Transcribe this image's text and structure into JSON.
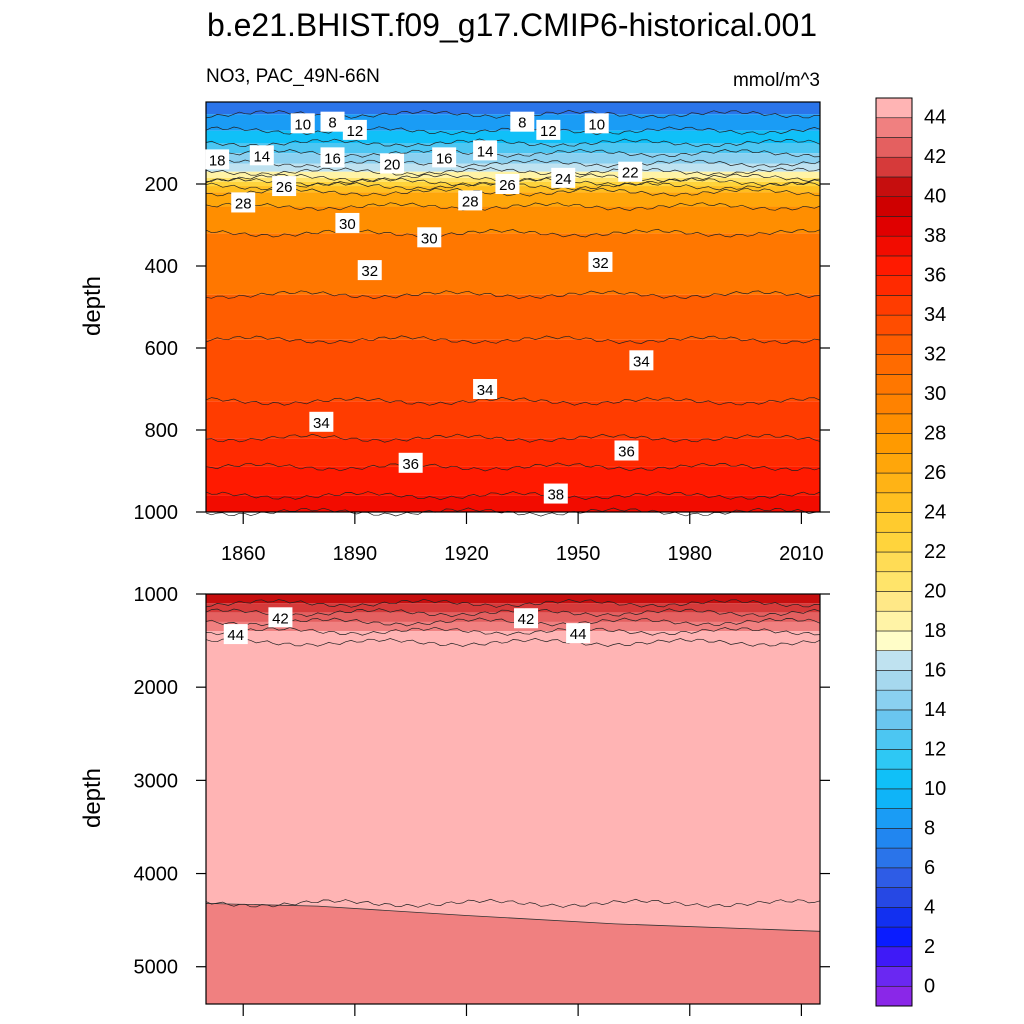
{
  "title": "b.e21.BHIST.f09_g17.CMIP6-historical.001",
  "chart_data": [
    {
      "type": "heatmap",
      "panel": "upper",
      "subtitle_left": "NO3, PAC_49N-66N",
      "subtitle_right": "mmol/m^3",
      "ylabel": "depth",
      "xlim": [
        1850,
        2015
      ],
      "ylim": [
        1000,
        0
      ],
      "x_ticks": [
        1860,
        1890,
        1920,
        1950,
        1980,
        2010
      ],
      "y_ticks": [
        200,
        400,
        600,
        800,
        1000
      ],
      "contour_profile": [
        {
          "depth": 0,
          "value": 6
        },
        {
          "depth": 30,
          "value": 8
        },
        {
          "depth": 70,
          "value": 10
        },
        {
          "depth": 100,
          "value": 12
        },
        {
          "depth": 125,
          "value": 14
        },
        {
          "depth": 150,
          "value": 16
        },
        {
          "depth": 170,
          "value": 18
        },
        {
          "depth": 185,
          "value": 20
        },
        {
          "depth": 195,
          "value": 22
        },
        {
          "depth": 205,
          "value": 24
        },
        {
          "depth": 220,
          "value": 26
        },
        {
          "depth": 255,
          "value": 28
        },
        {
          "depth": 320,
          "value": 30
        },
        {
          "depth": 470,
          "value": 32
        },
        {
          "depth": 580,
          "value": 33
        },
        {
          "depth": 730,
          "value": 34
        },
        {
          "depth": 820,
          "value": 35
        },
        {
          "depth": 890,
          "value": 36
        },
        {
          "depth": 960,
          "value": 37
        },
        {
          "depth": 1000,
          "value": 37.5
        }
      ],
      "contour_labels": [
        {
          "text": "8",
          "x": 1884,
          "depth": 48
        },
        {
          "text": "10",
          "x": 1876,
          "depth": 52
        },
        {
          "text": "12",
          "x": 1890,
          "depth": 68
        },
        {
          "text": "8",
          "x": 1935,
          "depth": 48
        },
        {
          "text": "12",
          "x": 1942,
          "depth": 68
        },
        {
          "text": "10",
          "x": 1955,
          "depth": 52
        },
        {
          "text": "18",
          "x": 1853,
          "depth": 140
        },
        {
          "text": "14",
          "x": 1865,
          "depth": 130
        },
        {
          "text": "16",
          "x": 1884,
          "depth": 135
        },
        {
          "text": "20",
          "x": 1900,
          "depth": 150
        },
        {
          "text": "16",
          "x": 1914,
          "depth": 135
        },
        {
          "text": "14",
          "x": 1925,
          "depth": 118
        },
        {
          "text": "22",
          "x": 1964,
          "depth": 170
        },
        {
          "text": "24",
          "x": 1946,
          "depth": 185
        },
        {
          "text": "26",
          "x": 1931,
          "depth": 200
        },
        {
          "text": "26",
          "x": 1871,
          "depth": 205
        },
        {
          "text": "28",
          "x": 1860,
          "depth": 245
        },
        {
          "text": "28",
          "x": 1921,
          "depth": 240
        },
        {
          "text": "30",
          "x": 1888,
          "depth": 295
        },
        {
          "text": "30",
          "x": 1910,
          "depth": 330
        },
        {
          "text": "32",
          "x": 1894,
          "depth": 410
        },
        {
          "text": "32",
          "x": 1956,
          "depth": 390
        },
        {
          "text": "34",
          "x": 1967,
          "depth": 630
        },
        {
          "text": "34",
          "x": 1925,
          "depth": 700
        },
        {
          "text": "34",
          "x": 1881,
          "depth": 780
        },
        {
          "text": "36",
          "x": 1905,
          "depth": 880
        },
        {
          "text": "36",
          "x": 1963,
          "depth": 850
        },
        {
          "text": "38",
          "x": 1944,
          "depth": 955
        }
      ]
    },
    {
      "type": "heatmap",
      "panel": "lower",
      "ylabel": "depth",
      "ylim": [
        5400,
        1000
      ],
      "y_ticks": [
        1000,
        2000,
        3000,
        4000,
        5000
      ],
      "contour_profile": [
        {
          "depth": 1000,
          "value": 40
        },
        {
          "depth": 1100,
          "value": 41
        },
        {
          "depth": 1200,
          "value": 42
        },
        {
          "depth": 1300,
          "value": 43
        },
        {
          "depth": 1400,
          "value": 44
        },
        {
          "depth": 1520,
          "value": 45
        },
        {
          "depth": 4320,
          "value": 46
        }
      ],
      "deep_boundary": [
        {
          "x": 1850,
          "depth": 4320
        },
        {
          "x": 1880,
          "depth": 4350
        },
        {
          "x": 1920,
          "depth": 4450
        },
        {
          "x": 1960,
          "depth": 4540
        },
        {
          "x": 2015,
          "depth": 4620
        }
      ],
      "contour_labels": [
        {
          "text": "42",
          "x": 1870,
          "depth": 1250
        },
        {
          "text": "44",
          "x": 1858,
          "depth": 1430
        },
        {
          "text": "42",
          "x": 1936,
          "depth": 1260
        },
        {
          "text": "44",
          "x": 1950,
          "depth": 1420
        }
      ]
    }
  ],
  "colorbar": {
    "labels": [
      "0",
      "2",
      "4",
      "6",
      "8",
      "10",
      "12",
      "14",
      "16",
      "18",
      "20",
      "22",
      "24",
      "26",
      "28",
      "30",
      "32",
      "34",
      "36",
      "38",
      "40",
      "42",
      "44"
    ],
    "colors": [
      "#8a27e8",
      "#6a28f2",
      "#3f1af7",
      "#0a1cff",
      "#1230f0",
      "#2648e4",
      "#2e5ce6",
      "#2a74ea",
      "#2186f0",
      "#1a9cf5",
      "#0fb4f8",
      "#10c0f8",
      "#2ec8f4",
      "#4cc6f2",
      "#6ac6f0",
      "#8ad0f0",
      "#a6d8ee",
      "#bfe2f0",
      "#fffdc8",
      "#fff3a6",
      "#ffe887",
      "#ffe46a",
      "#ffdc55",
      "#ffd43c",
      "#ffcb2e",
      "#ffbf20",
      "#ffb315",
      "#ffa60a",
      "#ff9a00",
      "#ff8e00",
      "#ff8200",
      "#ff7700",
      "#ff6b00",
      "#ff5d00",
      "#ff4d00",
      "#ff3c00",
      "#ff2a00",
      "#ff1a00",
      "#f20c00",
      "#e00000",
      "#cf0000",
      "#c60e0e",
      "#d63a3a",
      "#e46060",
      "#f08080",
      "#ffb4b4"
    ]
  }
}
